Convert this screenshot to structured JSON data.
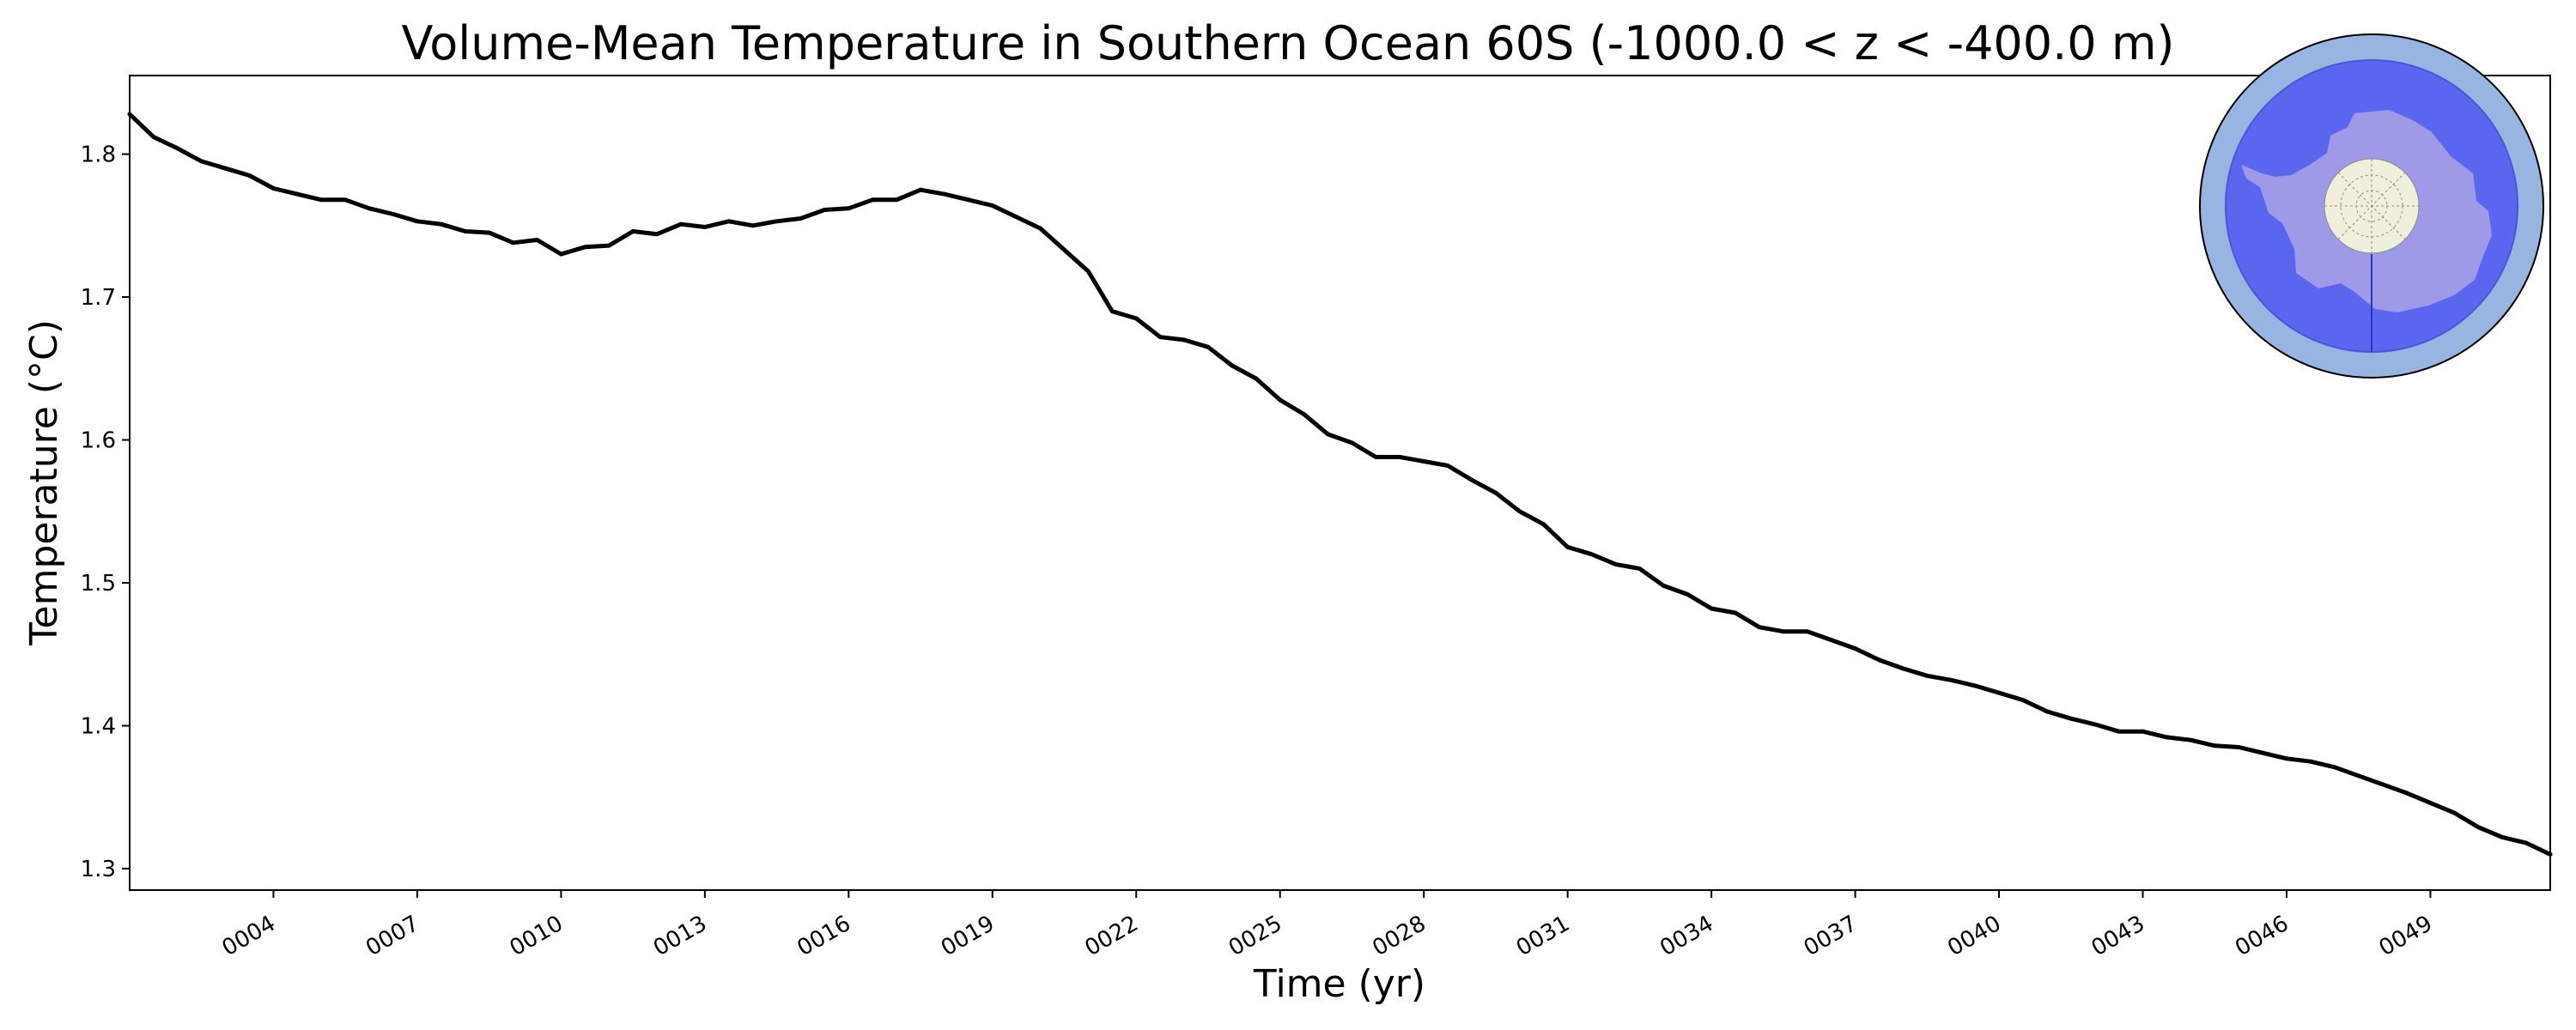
{
  "chart_data": {
    "type": "line",
    "title": "Volume-Mean Temperature in Southern Ocean 60S (-1000.0 < z < -400.0 m)",
    "xlabel": "Time (yr)",
    "ylabel": "Temperature ($^\\circ$C)",
    "ylabel_display": "Temperature (°C)",
    "xlim": [
      1.0,
      51.5
    ],
    "ylim": [
      1.285,
      1.855
    ],
    "x_ticks": [
      4,
      7,
      10,
      13,
      16,
      19,
      22,
      25,
      28,
      31,
      34,
      37,
      40,
      43,
      46,
      49
    ],
    "x_tick_labels": [
      "0004",
      "0007",
      "0010",
      "0013",
      "0016",
      "0019",
      "0022",
      "0025",
      "0028",
      "0031",
      "0034",
      "0037",
      "0040",
      "0043",
      "0046",
      "0049"
    ],
    "y_ticks": [
      1.3,
      1.4,
      1.5,
      1.6,
      1.7,
      1.8
    ],
    "y_tick_labels": [
      "1.3",
      "1.4",
      "1.5",
      "1.6",
      "1.7",
      "1.8"
    ],
    "grid": false,
    "series": [
      {
        "name": "Southern Ocean 60S volume-mean temperature",
        "color": "#000000",
        "x": [
          1.0,
          1.5,
          2.0,
          2.5,
          3.0,
          3.5,
          4.0,
          4.5,
          5.0,
          5.5,
          6.0,
          6.5,
          7.0,
          7.5,
          8.0,
          8.5,
          9.0,
          9.5,
          10.0,
          10.5,
          11.0,
          11.5,
          12.0,
          12.5,
          13.0,
          13.5,
          14.0,
          14.5,
          15.0,
          15.5,
          16.0,
          16.5,
          17.0,
          17.5,
          18.0,
          18.5,
          19.0,
          19.5,
          20.0,
          20.5,
          21.0,
          21.5,
          22.0,
          22.5,
          23.0,
          23.5,
          24.0,
          24.5,
          25.0,
          25.5,
          26.0,
          26.5,
          27.0,
          27.5,
          28.0,
          28.5,
          29.0,
          29.5,
          30.0,
          30.5,
          31.0,
          31.5,
          32.0,
          32.5,
          33.0,
          33.5,
          34.0,
          34.5,
          35.0,
          35.5,
          36.0,
          36.5,
          37.0,
          37.5,
          38.0,
          38.5,
          39.0,
          39.5,
          40.0,
          40.5,
          41.0,
          41.5,
          42.0,
          42.5,
          43.0,
          43.5,
          44.0,
          44.5,
          45.0,
          45.5,
          46.0,
          46.5,
          47.0,
          47.5,
          48.0,
          48.5,
          49.0,
          49.5,
          50.0,
          50.5,
          51.0,
          51.5
        ],
        "values": [
          1.828,
          1.812,
          1.804,
          1.795,
          1.79,
          1.785,
          1.776,
          1.772,
          1.768,
          1.768,
          1.762,
          1.758,
          1.753,
          1.751,
          1.746,
          1.745,
          1.738,
          1.74,
          1.73,
          1.735,
          1.736,
          1.746,
          1.744,
          1.751,
          1.749,
          1.753,
          1.75,
          1.753,
          1.755,
          1.761,
          1.762,
          1.768,
          1.768,
          1.775,
          1.772,
          1.768,
          1.764,
          1.756,
          1.748,
          1.733,
          1.718,
          1.69,
          1.685,
          1.672,
          1.67,
          1.665,
          1.652,
          1.643,
          1.628,
          1.618,
          1.604,
          1.598,
          1.588,
          1.588,
          1.585,
          1.582,
          1.572,
          1.563,
          1.55,
          1.541,
          1.525,
          1.52,
          1.513,
          1.51,
          1.498,
          1.492,
          1.482,
          1.479,
          1.469,
          1.466,
          1.466,
          1.46,
          1.454,
          1.446,
          1.44,
          1.435,
          1.432,
          1.428,
          1.423,
          1.418,
          1.41,
          1.405,
          1.401,
          1.396,
          1.396,
          1.392,
          1.39,
          1.386,
          1.385,
          1.381,
          1.377,
          1.375,
          1.371,
          1.365,
          1.359,
          1.353,
          1.346,
          1.339,
          1.329,
          1.322,
          1.318,
          1.31
        ]
      }
    ]
  },
  "inset_map": {
    "name": "Southern Ocean 60S region map",
    "ocean_color": "#98b4e0",
    "region_color": "#5a66ee",
    "land_color": "#9f9ae8",
    "pole_color": "#efefdc",
    "border_color": "#000000"
  }
}
